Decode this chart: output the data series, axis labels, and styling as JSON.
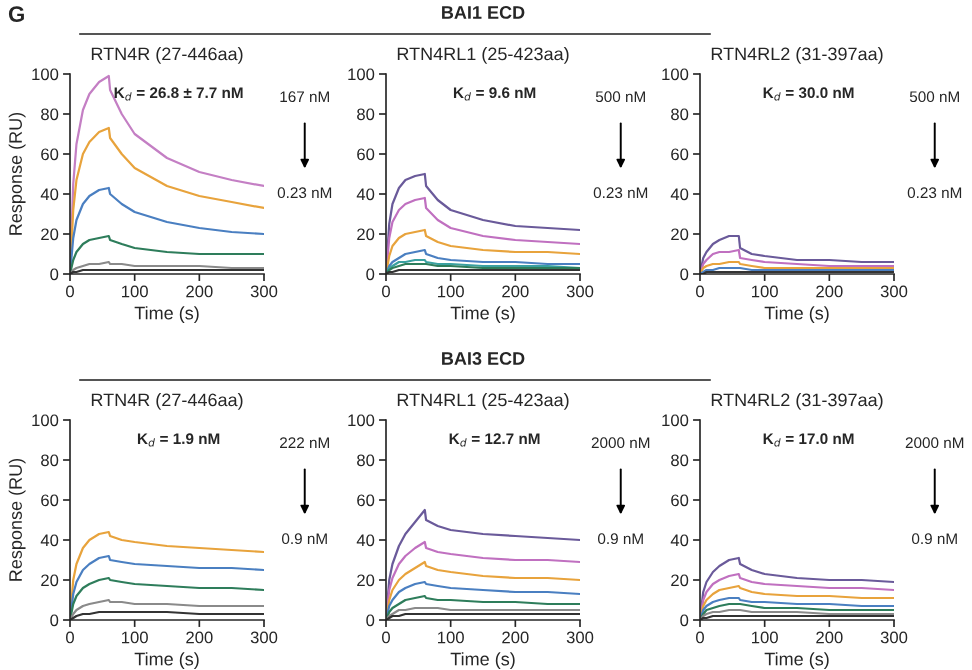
{
  "chart_data": [
    {
      "type": "line",
      "title": "RTN4R (27-446aa)",
      "xlabel": "Time (s)",
      "ylabel": "Response (RU)",
      "xlim": [
        0,
        300
      ],
      "ylim": [
        0,
        100
      ],
      "xticks": [
        0,
        100,
        200,
        300
      ],
      "yticks": [
        0,
        20,
        40,
        60,
        80,
        100
      ],
      "grid": false,
      "legend": false,
      "annotations": [
        "K$_{d}$ = 26.8 ± 7.7 nM",
        "167 nM",
        "0.23 nM",
        "G"
      ],
      "x": [
        0,
        5,
        10,
        20,
        30,
        45,
        60,
        62,
        80,
        100,
        150,
        200,
        250,
        300
      ],
      "series": [
        {
          "color": "#c47fc4",
          "values": [
            0,
            45,
            65,
            82,
            90,
            96,
            99,
            92,
            80,
            70,
            58,
            51,
            47,
            44
          ]
        },
        {
          "color": "#e8a33c",
          "values": [
            0,
            32,
            47,
            60,
            66,
            71,
            73,
            68,
            60,
            53,
            44,
            39,
            36,
            33
          ]
        },
        {
          "color": "#4a7fc1",
          "values": [
            0,
            18,
            27,
            35,
            39,
            42,
            43,
            40,
            35,
            31,
            26,
            23,
            21,
            20
          ]
        },
        {
          "color": "#2e7d5b",
          "values": [
            0,
            7,
            11,
            15,
            17,
            18,
            19,
            17,
            15,
            13,
            11,
            10,
            10,
            10
          ]
        },
        {
          "color": "#8a8a8a",
          "values": [
            0,
            2,
            3,
            4,
            5,
            5,
            6,
            5,
            5,
            4,
            4,
            4,
            3,
            3
          ]
        },
        {
          "color": "#333333",
          "values": [
            0,
            1,
            1,
            2,
            2,
            2,
            2,
            2,
            2,
            2,
            2,
            2,
            2,
            2
          ]
        }
      ]
    },
    {
      "type": "line",
      "title": "RTN4RL1 (25-423aa)",
      "xlabel": "Time (s)",
      "xlim": [
        0,
        300
      ],
      "ylim": [
        0,
        100
      ],
      "xticks": [
        0,
        100,
        200,
        300
      ],
      "yticks": [
        0,
        20,
        40,
        60,
        80,
        100
      ],
      "grid": false,
      "legend": false,
      "annotations": [
        "K$_{d}$ = 9.6 nM",
        "500 nM",
        "0.23 nM",
        "BAI1 ECD"
      ],
      "x": [
        0,
        5,
        10,
        20,
        30,
        45,
        60,
        62,
        80,
        100,
        150,
        200,
        250,
        300
      ],
      "series": [
        {
          "color": "#6a5a9a",
          "values": [
            0,
            25,
            35,
            43,
            47,
            49,
            50,
            44,
            37,
            32,
            27,
            24,
            23,
            22
          ]
        },
        {
          "color": "#c070c0",
          "values": [
            0,
            18,
            26,
            32,
            35,
            37,
            38,
            33,
            27,
            23,
            19,
            17,
            16,
            15
          ]
        },
        {
          "color": "#e8a33c",
          "values": [
            0,
            9,
            14,
            18,
            20,
            21,
            22,
            19,
            16,
            14,
            12,
            11,
            11,
            10
          ]
        },
        {
          "color": "#4a7fc1",
          "values": [
            0,
            4,
            6,
            8,
            10,
            11,
            12,
            10,
            8,
            7,
            6,
            6,
            5,
            5
          ]
        },
        {
          "color": "#3aa0a0",
          "values": [
            0,
            3,
            4,
            6,
            6,
            7,
            7,
            6,
            5,
            5,
            4,
            4,
            4,
            3
          ]
        },
        {
          "color": "#2e7d5b",
          "values": [
            0,
            2,
            3,
            4,
            5,
            5,
            5,
            5,
            4,
            4,
            3,
            3,
            3,
            3
          ]
        },
        {
          "color": "#333333",
          "values": [
            0,
            1,
            1,
            2,
            2,
            2,
            2,
            2,
            2,
            2,
            2,
            2,
            2,
            2
          ]
        }
      ]
    },
    {
      "type": "line",
      "title": "RTN4RL2 (31-397aa)",
      "xlabel": "Time (s)",
      "xlim": [
        0,
        300
      ],
      "ylim": [
        0,
        100
      ],
      "xticks": [
        0,
        100,
        200,
        300
      ],
      "yticks": [
        0,
        20,
        40,
        60,
        80,
        100
      ],
      "grid": false,
      "legend": false,
      "annotations": [
        "K$_{d}$ = 30.0 nM",
        "500 nM",
        "0.23 nM"
      ],
      "x": [
        0,
        5,
        10,
        20,
        30,
        45,
        60,
        62,
        80,
        100,
        150,
        200,
        250,
        300
      ],
      "series": [
        {
          "color": "#6a5a9a",
          "values": [
            0,
            8,
            11,
            15,
            17,
            19,
            19,
            13,
            10,
            9,
            7,
            7,
            6,
            6
          ]
        },
        {
          "color": "#c070c0",
          "values": [
            0,
            5,
            7,
            10,
            11,
            11,
            12,
            8,
            7,
            6,
            5,
            4,
            4,
            4
          ]
        },
        {
          "color": "#e8a33c",
          "values": [
            0,
            3,
            4,
            5,
            5,
            6,
            6,
            5,
            4,
            3,
            3,
            3,
            3,
            3
          ]
        },
        {
          "color": "#4a7fc1",
          "values": [
            0,
            1,
            2,
            2,
            3,
            3,
            3,
            3,
            2,
            2,
            2,
            2,
            2,
            2
          ]
        },
        {
          "color": "#333333",
          "values": [
            0,
            0,
            1,
            1,
            1,
            1,
            1,
            1,
            1,
            1,
            1,
            1,
            1,
            1
          ]
        }
      ]
    },
    {
      "type": "line",
      "title": "RTN4R (27-446aa)",
      "xlabel": "Time (s)",
      "ylabel": "Response (RU)",
      "xlim": [
        0,
        300
      ],
      "ylim": [
        0,
        100
      ],
      "xticks": [
        0,
        100,
        200,
        300
      ],
      "yticks": [
        0,
        20,
        40,
        60,
        80,
        100
      ],
      "grid": false,
      "legend": false,
      "annotations": [
        "K$_{d}$ = 1.9 nM",
        "222 nM",
        "0.9 nM"
      ],
      "x": [
        0,
        5,
        10,
        20,
        30,
        45,
        60,
        62,
        80,
        100,
        150,
        200,
        250,
        300
      ],
      "series": [
        {
          "color": "#e8a33c",
          "values": [
            0,
            20,
            28,
            36,
            40,
            43,
            44,
            42,
            40,
            39,
            37,
            36,
            35,
            34
          ]
        },
        {
          "color": "#4a7fc1",
          "values": [
            0,
            13,
            19,
            25,
            28,
            31,
            32,
            30,
            29,
            28,
            27,
            26,
            26,
            25
          ]
        },
        {
          "color": "#2e7d5b",
          "values": [
            0,
            8,
            12,
            16,
            18,
            20,
            21,
            20,
            19,
            18,
            17,
            16,
            16,
            15
          ]
        },
        {
          "color": "#8a8a8a",
          "values": [
            0,
            3,
            5,
            7,
            8,
            9,
            10,
            9,
            9,
            8,
            8,
            7,
            7,
            7
          ]
        },
        {
          "color": "#333333",
          "values": [
            0,
            1,
            2,
            3,
            3,
            4,
            4,
            4,
            4,
            4,
            4,
            3,
            3,
            3
          ]
        }
      ]
    },
    {
      "type": "line",
      "title": "RTN4RL1 (25-423aa)",
      "xlabel": "Time (s)",
      "xlim": [
        0,
        300
      ],
      "ylim": [
        0,
        100
      ],
      "xticks": [
        0,
        100,
        200,
        300
      ],
      "yticks": [
        0,
        20,
        40,
        60,
        80,
        100
      ],
      "grid": false,
      "legend": false,
      "annotations": [
        "K$_{d}$ = 12.7 nM",
        "2000 nM",
        "0.9 nM",
        "BAI3 ECD"
      ],
      "x": [
        0,
        5,
        10,
        20,
        30,
        45,
        60,
        62,
        80,
        100,
        150,
        200,
        250,
        300
      ],
      "series": [
        {
          "color": "#6a5a9a",
          "values": [
            0,
            20,
            28,
            37,
            43,
            49,
            55,
            50,
            47,
            45,
            43,
            42,
            41,
            40
          ]
        },
        {
          "color": "#c070c0",
          "values": [
            0,
            15,
            21,
            28,
            32,
            36,
            39,
            36,
            34,
            33,
            31,
            30,
            30,
            29
          ]
        },
        {
          "color": "#e8a33c",
          "values": [
            0,
            10,
            15,
            20,
            23,
            26,
            29,
            27,
            25,
            24,
            22,
            21,
            21,
            20
          ]
        },
        {
          "color": "#4a7fc1",
          "values": [
            0,
            7,
            10,
            14,
            16,
            18,
            19,
            18,
            17,
            16,
            15,
            14,
            14,
            13
          ]
        },
        {
          "color": "#2e7d5b",
          "values": [
            0,
            4,
            6,
            8,
            10,
            11,
            12,
            11,
            10,
            10,
            9,
            9,
            8,
            8
          ]
        },
        {
          "color": "#8a8a8a",
          "values": [
            0,
            2,
            3,
            5,
            5,
            6,
            6,
            6,
            6,
            5,
            5,
            5,
            5,
            5
          ]
        },
        {
          "color": "#333333",
          "values": [
            0,
            1,
            2,
            2,
            3,
            3,
            3,
            3,
            3,
            3,
            3,
            3,
            3,
            3
          ]
        }
      ]
    },
    {
      "type": "line",
      "title": "RTN4RL2 (31-397aa)",
      "xlabel": "Time (s)",
      "xlim": [
        0,
        300
      ],
      "ylim": [
        0,
        100
      ],
      "xticks": [
        0,
        100,
        200,
        300
      ],
      "yticks": [
        0,
        20,
        40,
        60,
        80,
        100
      ],
      "grid": false,
      "legend": false,
      "annotations": [
        "K$_{d}$ = 17.0 nM",
        "2000 nM",
        "0.9 nM"
      ],
      "x": [
        0,
        5,
        10,
        20,
        30,
        45,
        60,
        62,
        80,
        100,
        150,
        200,
        250,
        300
      ],
      "series": [
        {
          "color": "#6a5a9a",
          "values": [
            0,
            14,
            19,
            24,
            27,
            30,
            31,
            28,
            25,
            23,
            21,
            20,
            20,
            19
          ]
        },
        {
          "color": "#c070c0",
          "values": [
            0,
            10,
            14,
            18,
            20,
            22,
            23,
            21,
            19,
            18,
            17,
            16,
            16,
            15
          ]
        },
        {
          "color": "#e8a33c",
          "values": [
            0,
            7,
            10,
            13,
            15,
            16,
            17,
            16,
            14,
            13,
            12,
            12,
            11,
            11
          ]
        },
        {
          "color": "#4a7fc1",
          "values": [
            0,
            5,
            7,
            9,
            10,
            11,
            11,
            10,
            9,
            9,
            8,
            8,
            7,
            7
          ]
        },
        {
          "color": "#2e7d5b",
          "values": [
            0,
            3,
            5,
            6,
            7,
            8,
            8,
            8,
            7,
            6,
            6,
            5,
            5,
            5
          ]
        },
        {
          "color": "#8a8a8a",
          "values": [
            0,
            2,
            3,
            4,
            4,
            5,
            5,
            5,
            4,
            4,
            4,
            3,
            3,
            3
          ]
        },
        {
          "color": "#333333",
          "values": [
            0,
            1,
            1,
            2,
            2,
            2,
            2,
            2,
            2,
            2,
            2,
            2,
            2,
            2
          ]
        }
      ]
    }
  ]
}
